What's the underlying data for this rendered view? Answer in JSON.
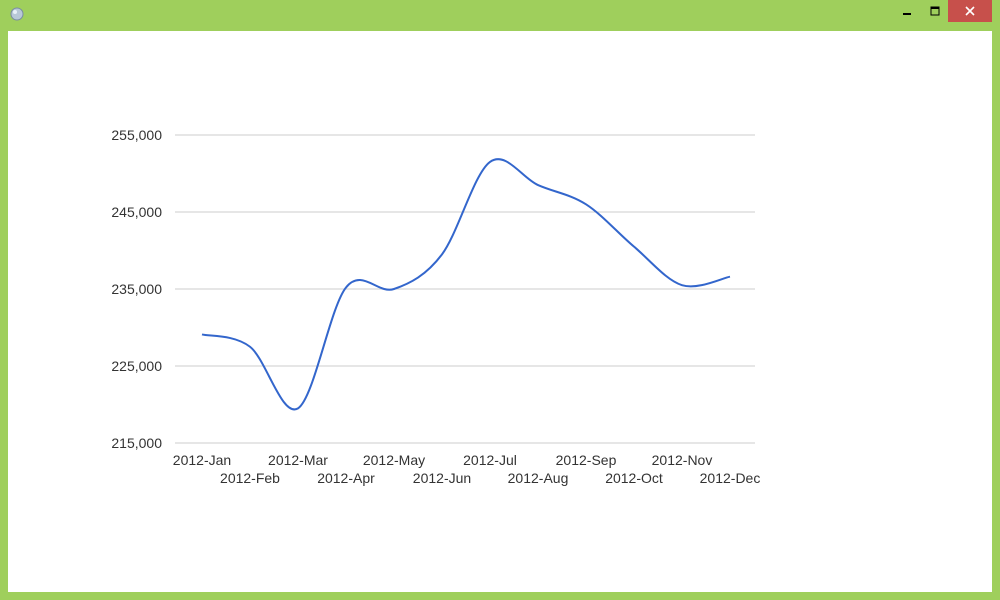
{
  "window": {
    "title": "",
    "app_icon": "app-icon",
    "controls": [
      "minimize-icon",
      "maximize-icon",
      "close-icon"
    ],
    "frame_color": "#9fcf5c",
    "close_color": "#c7504b"
  },
  "chart_data": {
    "type": "line",
    "title": "",
    "xlabel": "",
    "ylabel": "",
    "categories": [
      "2012-Jan",
      "2012-Feb",
      "2012-Mar",
      "2012-Apr",
      "2012-May",
      "2012-Jun",
      "2012-Jul",
      "2012-Aug",
      "2012-Sep",
      "2012-Oct",
      "2012-Nov",
      "2012-Dec"
    ],
    "series": [
      {
        "values": [
          229100,
          227500,
          219500,
          235200,
          235000,
          239500,
          251500,
          248500,
          246000,
          240500,
          235500,
          236600
        ],
        "color": "#3366cc"
      }
    ],
    "ylim": [
      215000,
      255000
    ],
    "yticks": [
      215000,
      225000,
      235000,
      245000,
      255000
    ],
    "ytick_labels": [
      "215,000",
      "225,000",
      "235,000",
      "245,000",
      "255,000"
    ],
    "grid": true,
    "legend": "none",
    "curve": "smooth"
  }
}
